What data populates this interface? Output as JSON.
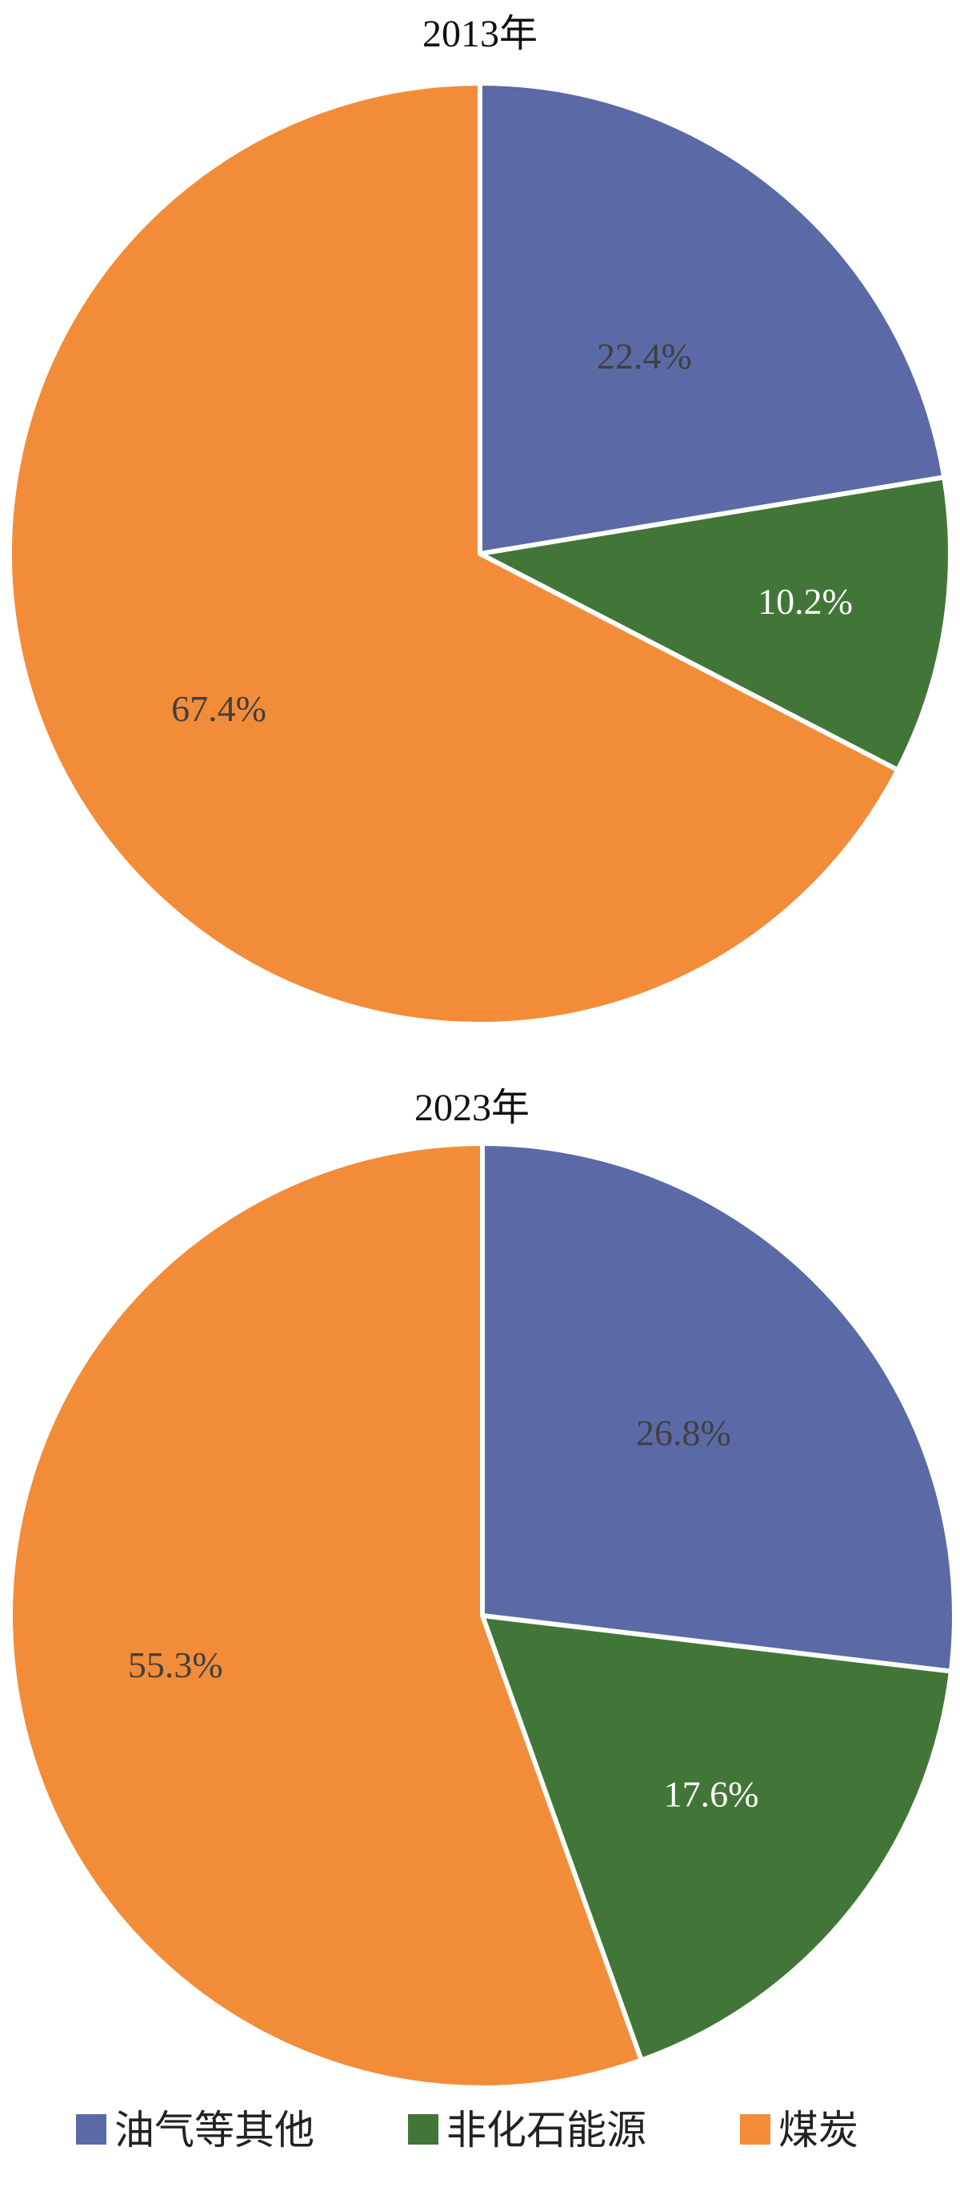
{
  "chart_data": [
    {
      "type": "pie",
      "title": "2013年",
      "start": "12 o'clock",
      "direction": "clockwise",
      "slices": [
        {
          "label": "油气等其他",
          "value": 22.4,
          "display": "22.4%",
          "color": "#5b69a6",
          "label_color": "#404040"
        },
        {
          "label": "非化石能源",
          "value": 10.2,
          "display": "10.2%",
          "color": "#427638",
          "label_color": "#ffffff"
        },
        {
          "label": "煤炭",
          "value": 67.4,
          "display": "67.4%",
          "color": "#f38c38",
          "label_color": "#404040"
        }
      ]
    },
    {
      "type": "pie",
      "title": "2023年",
      "start": "12 o'clock",
      "direction": "clockwise",
      "slices": [
        {
          "label": "油气等其他",
          "value": 26.8,
          "display": "26.8%",
          "color": "#5b69a6",
          "label_color": "#404040"
        },
        {
          "label": "非化石能源",
          "value": 17.6,
          "display": "17.6%",
          "color": "#427638",
          "label_color": "#ffffff"
        },
        {
          "label": "煤炭",
          "value": 55.3,
          "display": "55.3%",
          "color": "#f38c38",
          "label_color": "#404040"
        }
      ]
    }
  ],
  "legend": {
    "placement": "bottom",
    "items": [
      {
        "label": "油气等其他",
        "color": "#5b69a6"
      },
      {
        "label": "非化石能源",
        "color": "#427638"
      },
      {
        "label": "煤炭",
        "color": "#f38c38"
      }
    ]
  }
}
